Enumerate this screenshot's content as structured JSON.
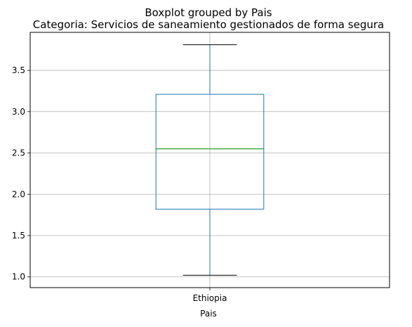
{
  "chart_data": {
    "type": "box",
    "suptitle": "Boxplot grouped by Pais",
    "title": "Categoria: Servicios de saneamiento gestionados de forma segura",
    "xlabel": "Pais",
    "ylabel": "",
    "categories": [
      "Ethiopia"
    ],
    "boxes": [
      {
        "category": "Ethiopia",
        "whisker_low": 1.02,
        "q1": 1.82,
        "median": 2.55,
        "q3": 3.21,
        "whisker_high": 3.81
      }
    ],
    "ylim": [
      0.87,
      3.96
    ],
    "yticks": [
      1.0,
      1.5,
      2.0,
      2.5,
      3.0,
      3.5
    ],
    "ytick_labels": [
      "1.0",
      "1.5",
      "2.0",
      "2.5",
      "3.0",
      "3.5"
    ],
    "grid": true,
    "colors": {
      "box": "#1f77b4",
      "median": "#2ca02c",
      "grid": "#b0b0b0",
      "axes": "#000000"
    }
  }
}
